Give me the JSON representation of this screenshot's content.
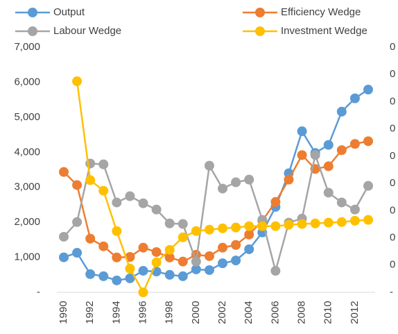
{
  "chart_data": {
    "type": "line",
    "x": [
      1990,
      1991,
      1992,
      1993,
      1994,
      1995,
      1996,
      1997,
      1998,
      1999,
      2000,
      2001,
      2002,
      2003,
      2004,
      2005,
      2006,
      2007,
      2008,
      2009,
      2010,
      2011,
      2012,
      2013
    ],
    "xlim": [
      1990,
      2013
    ],
    "xticks": [
      1990,
      1992,
      1994,
      1996,
      1998,
      2000,
      2002,
      2004,
      2006,
      2008,
      2010,
      2012
    ],
    "ylim": [
      0,
      7000
    ],
    "yticks": [
      {
        "value": 0,
        "label": "-"
      },
      {
        "value": 1000,
        "label": "1,000"
      },
      {
        "value": 2000,
        "label": "2,000"
      },
      {
        "value": 3000,
        "label": "3,000"
      },
      {
        "value": 4000,
        "label": "4,000"
      },
      {
        "value": 5000,
        "label": "5,000"
      },
      {
        "value": 6000,
        "label": "6,000"
      },
      {
        "value": 7000,
        "label": "7,000"
      }
    ],
    "y2lim": [
      0,
      0.9
    ],
    "y2ticks": [
      {
        "value": 0,
        "label": "-"
      },
      {
        "value": 0.1,
        "label": "0"
      },
      {
        "value": 0.2,
        "label": "0"
      },
      {
        "value": 0.3,
        "label": "0"
      },
      {
        "value": 0.4,
        "label": "0"
      },
      {
        "value": 0.5,
        "label": "0"
      },
      {
        "value": 0.6,
        "label": "0"
      },
      {
        "value": 0.7,
        "label": "0"
      },
      {
        "value": 0.8,
        "label": "0"
      },
      {
        "value": 0.9,
        "label": "0"
      }
    ],
    "series": [
      {
        "name": "Output",
        "color": "#5b9bd5",
        "values": [
          1000,
          1130,
          520,
          460,
          340,
          400,
          615,
          595,
          500,
          460,
          655,
          635,
          830,
          910,
          1230,
          1710,
          2440,
          3400,
          4600,
          3980,
          4210,
          5160,
          5540,
          5790
        ]
      },
      {
        "name": "Efficiency Wedge",
        "color": "#ed7d31",
        "axis": "y2",
        "values": [
          0.442,
          0.394,
          0.197,
          0.169,
          0.128,
          0.13,
          0.164,
          0.148,
          0.128,
          0.113,
          0.138,
          0.133,
          0.164,
          0.174,
          0.212,
          0.263,
          0.332,
          0.414,
          0.504,
          0.453,
          0.463,
          0.522,
          0.545,
          0.555
        ]
      },
      {
        "name": "Labour Wedge",
        "color": "#a5a5a5",
        "axis": "y2",
        "values": [
          0.204,
          0.258,
          0.473,
          0.47,
          0.33,
          0.353,
          0.327,
          0.304,
          0.253,
          0.251,
          0.113,
          0.465,
          0.381,
          0.404,
          0.414,
          0.266,
          0.079,
          0.256,
          0.271,
          0.504,
          0.366,
          0.33,
          0.304,
          0.391
        ]
      },
      {
        "name": "Investment Wedge",
        "color": "#ffc000",
        "axis": "y2",
        "values": [
          null,
          0.775,
          0.412,
          0.373,
          0.225,
          0.087,
          0,
          0.11,
          0.156,
          0.202,
          0.225,
          0.23,
          0.235,
          0.238,
          0.243,
          0.243,
          0.243,
          0.248,
          0.251,
          0.253,
          0.256,
          0.258,
          0.263,
          0.266
        ]
      }
    ]
  }
}
